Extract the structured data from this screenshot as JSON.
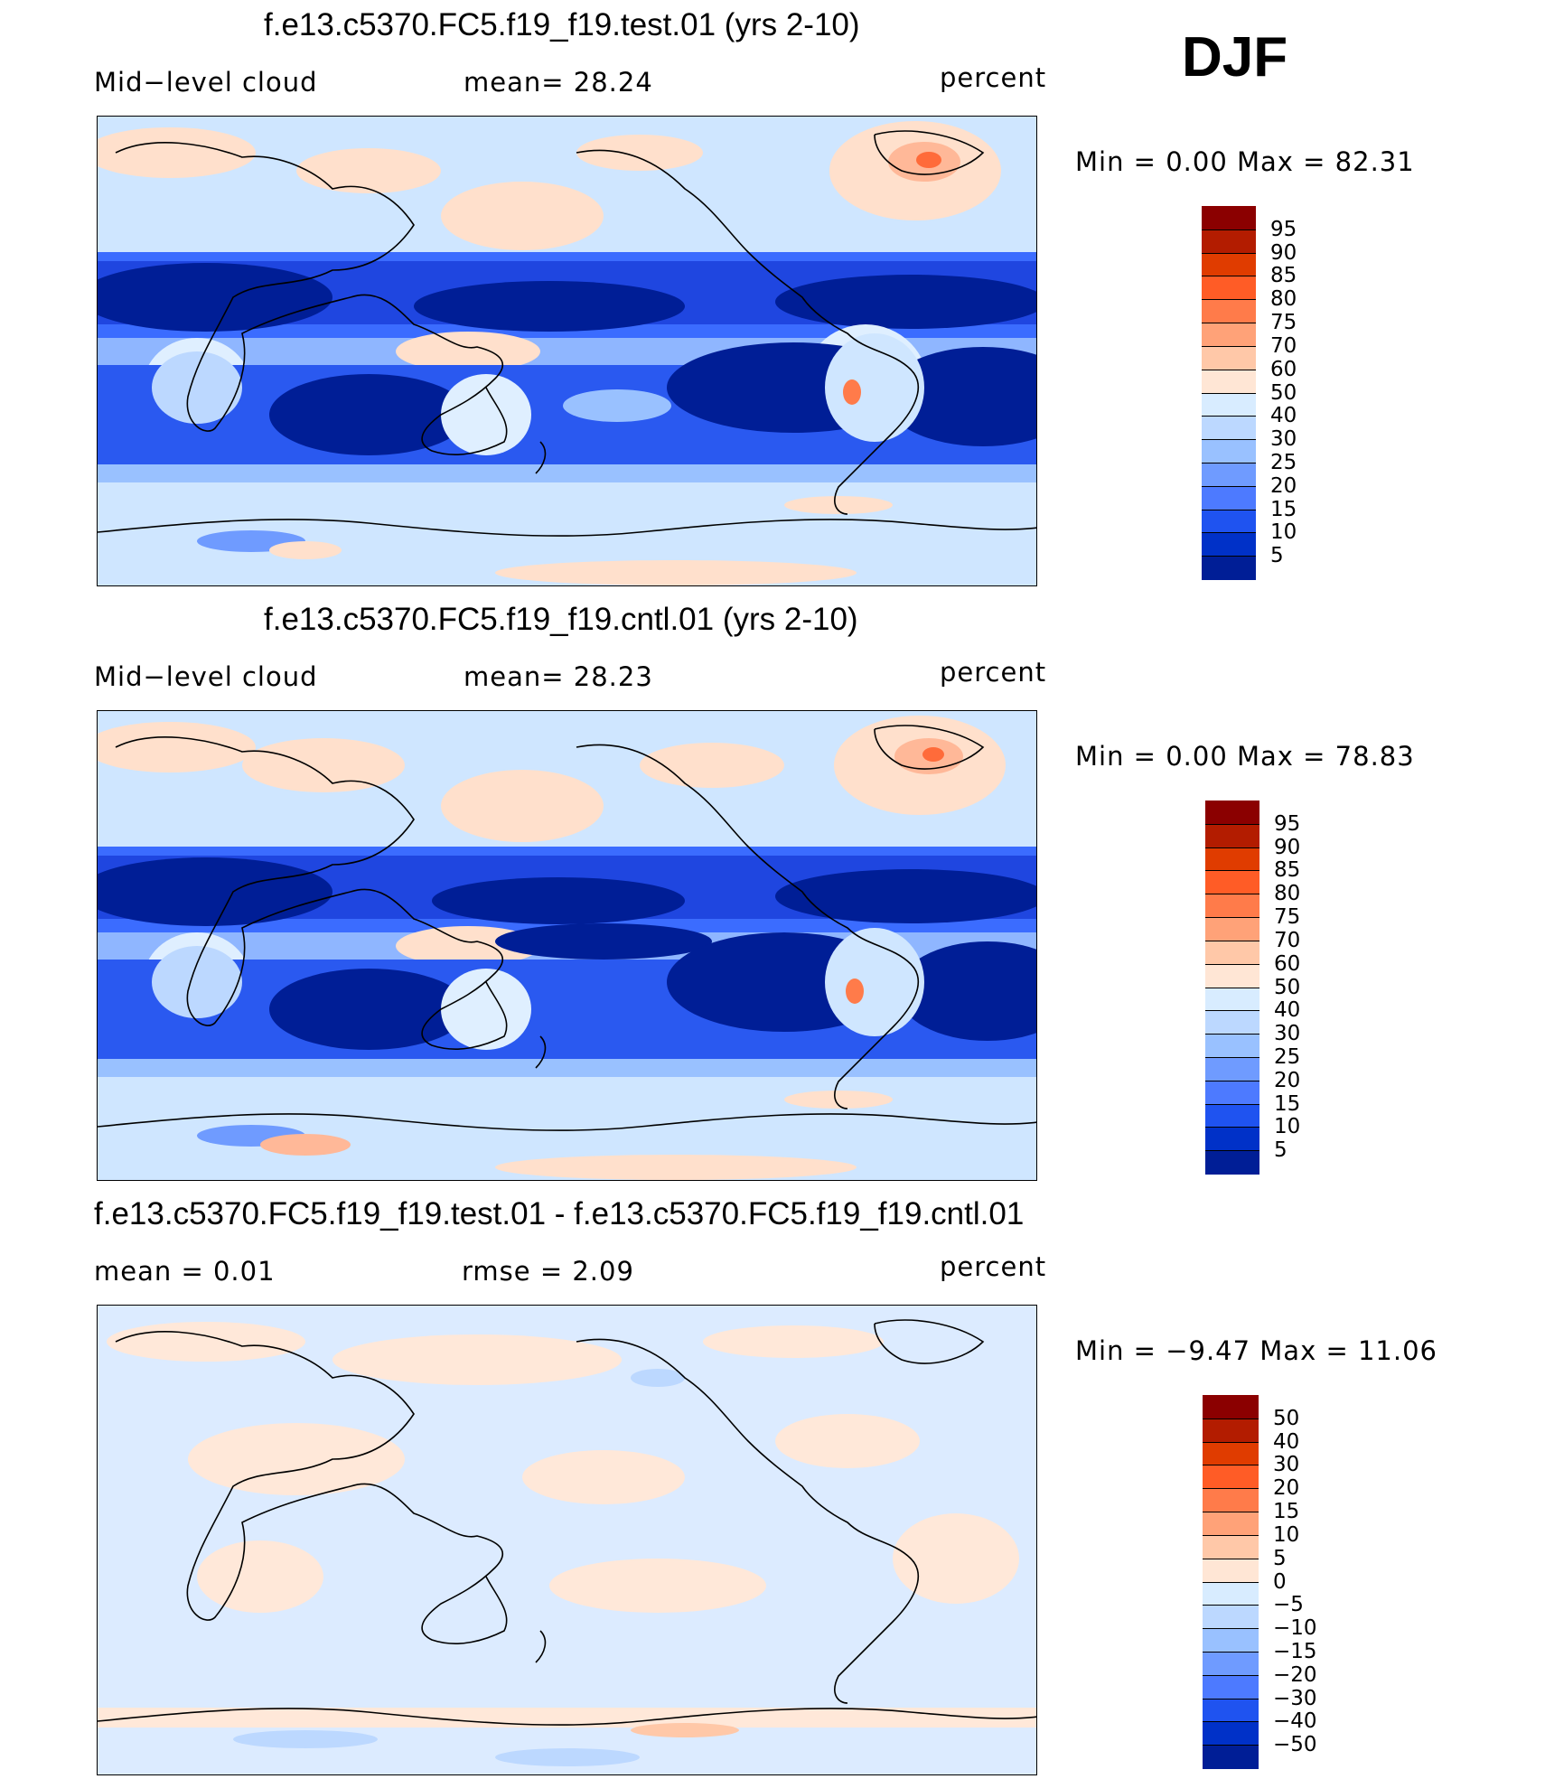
{
  "season": "DJF",
  "panels": [
    {
      "title": "f.e13.c5370.FC5.f19_f19.test.01 (yrs 2-10)",
      "left": "Mid−level cloud",
      "middle": "mean=   28.24",
      "units": "percent",
      "minmax": "Min =    0.00  Max =    82.31",
      "colorbar": {
        "colors": [
          "#8b0000",
          "#b31c00",
          "#e03c00",
          "#ff5c26",
          "#ff7b4a",
          "#ffa278",
          "#ffc8a8",
          "#ffe6d5",
          "#d8ecff",
          "#bcd8ff",
          "#99c1ff",
          "#6f9bff",
          "#4d7aff",
          "#1f53f0",
          "#0031c8",
          "#001e96"
        ],
        "labels": [
          "95",
          "90",
          "85",
          "80",
          "75",
          "70",
          "60",
          "50",
          "40",
          "30",
          "25",
          "20",
          "15",
          "10",
          "5"
        ]
      }
    },
    {
      "title": "f.e13.c5370.FC5.f19_f19.cntl.01 (yrs 2-10)",
      "left": "Mid−level cloud",
      "middle": "mean=   28.23",
      "units": "percent",
      "minmax": "Min =    0.00  Max =    78.83",
      "colorbar": {
        "colors": [
          "#8b0000",
          "#b31c00",
          "#e03c00",
          "#ff5c26",
          "#ff7b4a",
          "#ffa278",
          "#ffc8a8",
          "#ffe6d5",
          "#d8ecff",
          "#bcd8ff",
          "#99c1ff",
          "#6f9bff",
          "#4d7aff",
          "#1f53f0",
          "#0031c8",
          "#001e96"
        ],
        "labels": [
          "95",
          "90",
          "85",
          "80",
          "75",
          "70",
          "60",
          "50",
          "40",
          "30",
          "25",
          "20",
          "15",
          "10",
          "5"
        ]
      }
    },
    {
      "title": "f.e13.c5370.FC5.f19_f19.test.01 - f.e13.c5370.FC5.f19_f19.cntl.01",
      "left": "mean =    0.01",
      "middle": "rmse =    2.09",
      "units": "percent",
      "minmax": "Min =  −9.47  Max =    11.06",
      "colorbar": {
        "colors": [
          "#8b0000",
          "#b31c00",
          "#e03c00",
          "#ff5c26",
          "#ff7b4a",
          "#ffa278",
          "#ffc8a8",
          "#ffe6d5",
          "#d8ecff",
          "#bcd8ff",
          "#99c1ff",
          "#6f9bff",
          "#4d7aff",
          "#1f53f0",
          "#0031c8",
          "#001e96"
        ],
        "labels": [
          "50",
          "40",
          "30",
          "20",
          "15",
          "10",
          "5",
          "0",
          "−5",
          "−10",
          "−15",
          "−20",
          "−30",
          "−40",
          "−50"
        ]
      }
    }
  ]
}
